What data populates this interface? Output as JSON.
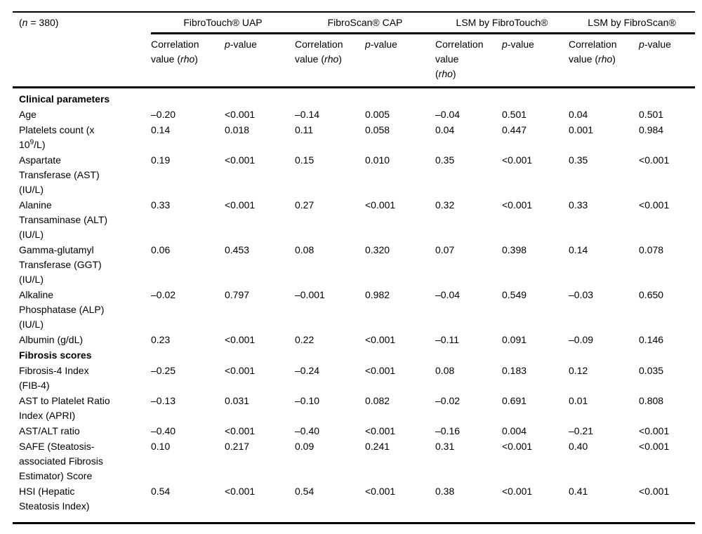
{
  "page": {
    "background": "#ffffff",
    "text_color": "#000000",
    "rule_color": "#000000"
  },
  "table": {
    "sample_size_header": [
      [
        "(",
        {
          "i": "n"
        },
        " = 380)"
      ]
    ],
    "groups": [
      {
        "label": "FibroTouch® UAP",
        "corr_header": [
          [
            "Correlation"
          ],
          [
            "value (",
            {
              "i": "rho"
            },
            ")"
          ]
        ],
        "p_header": [
          [
            {
              "i": "p"
            },
            "-value"
          ]
        ]
      },
      {
        "label": "FibroScan® CAP",
        "corr_header": [
          [
            "Correlation"
          ],
          [
            "value (",
            {
              "i": "rho"
            },
            ")"
          ]
        ],
        "p_header": [
          [
            {
              "i": "p"
            },
            "-value"
          ]
        ]
      },
      {
        "label": "LSM by FibroTouch®",
        "corr_header": [
          [
            "Correlation"
          ],
          [
            "value"
          ],
          [
            "(",
            {
              "i": "rho"
            },
            ")"
          ]
        ],
        "p_header": [
          [
            {
              "i": "p"
            },
            "-value"
          ]
        ]
      },
      {
        "label": "LSM by FibroScan®",
        "corr_header": [
          [
            "Correlation"
          ],
          [
            "value (",
            {
              "i": "rho"
            },
            ")"
          ]
        ],
        "p_header": [
          [
            {
              "i": "p"
            },
            "-value"
          ]
        ]
      }
    ],
    "sections": [
      {
        "title": "Clinical parameters",
        "rows": [
          {
            "label_lines": [
              "Age"
            ],
            "values": [
              "–0.20",
              "<0.001",
              "–0.14",
              "0.005",
              "–0.04",
              "0.501",
              "0.04",
              "0.501"
            ]
          },
          {
            "label_lines": [
              "Platelets count (x",
              "10^9/L)"
            ],
            "values": [
              "0.14",
              "0.018",
              "0.11",
              "0.058",
              "0.04",
              "0.447",
              "0.001",
              "0.984"
            ]
          },
          {
            "label_lines": [
              "Aspartate",
              "Transferase (AST)",
              "(IU/L)"
            ],
            "values": [
              "0.19",
              "<0.001",
              "0.15",
              "0.010",
              "0.35",
              "<0.001",
              "0.35",
              "<0.001"
            ]
          },
          {
            "label_lines": [
              "Alanine",
              "Transaminase (ALT)",
              "(IU/L)"
            ],
            "values": [
              "0.33",
              "<0.001",
              "0.27",
              "<0.001",
              "0.32",
              "<0.001",
              "0.33",
              "<0.001"
            ]
          },
          {
            "label_lines": [
              "Gamma-glutamyl",
              "Transferase (GGT)",
              "(IU/L)"
            ],
            "values": [
              "0.06",
              "0.453",
              "0.08",
              "0.320",
              "0.07",
              "0.398",
              "0.14",
              "0.078"
            ]
          },
          {
            "label_lines": [
              "Alkaline",
              "Phosphatase (ALP)",
              "(IU/L)"
            ],
            "values": [
              "–0.02",
              "0.797",
              "–0.001",
              "0.982",
              "–0.04",
              "0.549",
              "–0.03",
              "0.650"
            ]
          },
          {
            "label_lines": [
              "Albumin (g/dL)"
            ],
            "values": [
              "0.23",
              "<0.001",
              "0.22",
              "<0.001",
              "–0.11",
              "0.091",
              "–0.09",
              "0.146"
            ]
          }
        ]
      },
      {
        "title": "Fibrosis scores",
        "rows": [
          {
            "label_lines": [
              "Fibrosis-4 Index",
              "(FIB-4)"
            ],
            "values": [
              "–0.25",
              "<0.001",
              "–0.24",
              "<0.001",
              "0.08",
              "0.183",
              "0.12",
              "0.035"
            ]
          },
          {
            "label_lines": [
              "AST to Platelet Ratio",
              "Index (APRI)"
            ],
            "values": [
              "–0.13",
              "0.031",
              "–0.10",
              "0.082",
              "–0.02",
              "0.691",
              "0.01",
              "0.808"
            ]
          },
          {
            "label_lines": [
              "AST/ALT ratio"
            ],
            "values": [
              "–0.40",
              "<0.001",
              "–0.40",
              "<0.001",
              "–0.16",
              "0.004",
              "–0.21",
              "<0.001"
            ]
          },
          {
            "label_lines": [
              "SAFE (Steatosis-",
              "associated Fibrosis",
              "Estimator) Score"
            ],
            "values": [
              "0.10",
              "0.217",
              "0.09",
              "0.241",
              "0.31",
              "<0.001",
              "0.40",
              "<0.001"
            ]
          },
          {
            "label_lines": [
              "HSI (Hepatic",
              "Steatosis Index)"
            ],
            "values": [
              "0.54",
              "<0.001",
              "0.54",
              "<0.001",
              "0.38",
              "<0.001",
              "0.41",
              "<0.001"
            ]
          }
        ]
      }
    ]
  }
}
